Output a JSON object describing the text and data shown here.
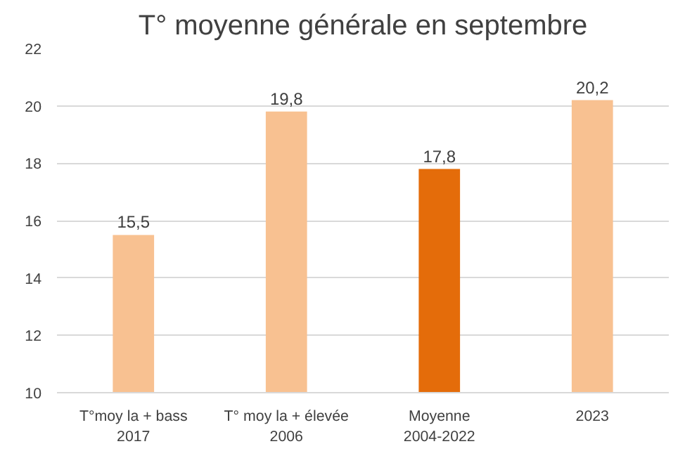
{
  "chart_data": {
    "type": "bar",
    "title": "T° moyenne générale en septembre",
    "categories": [
      "T°moy la + bass\n2017",
      "T° moy la + élevée\n2006",
      "Moyenne\n2004-2022",
      "2023"
    ],
    "values": [
      15.5,
      19.8,
      17.8,
      20.2
    ],
    "colors": [
      "#f8c191",
      "#f8c191",
      "#e46c0a",
      "#f8c191"
    ],
    "value_labels": [
      "15,5",
      "19,8",
      "17,8",
      "20,2"
    ],
    "ylim": [
      10,
      22
    ],
    "yticks": [
      10,
      12,
      14,
      16,
      18,
      20,
      22
    ],
    "grid": "y"
  }
}
